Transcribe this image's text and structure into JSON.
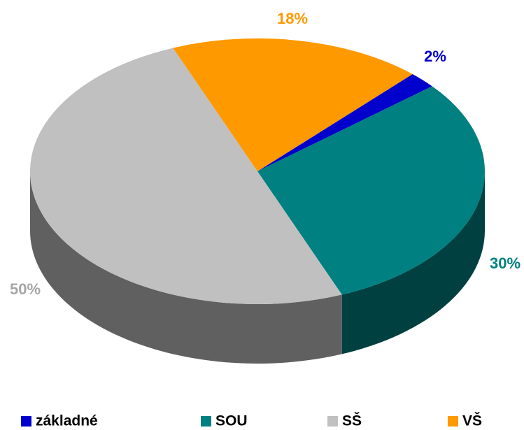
{
  "chart_data": {
    "type": "pie3d",
    "categories": [
      "základné",
      "SOU",
      "SŠ",
      "VŠ"
    ],
    "values": [
      2,
      30,
      50,
      18
    ],
    "value_labels": [
      "2%",
      "30%",
      "50%",
      "18%"
    ],
    "colors": [
      "#0000cc",
      "#008080",
      "#c0c0c0",
      "#ff9900"
    ],
    "legend": "bottom"
  }
}
